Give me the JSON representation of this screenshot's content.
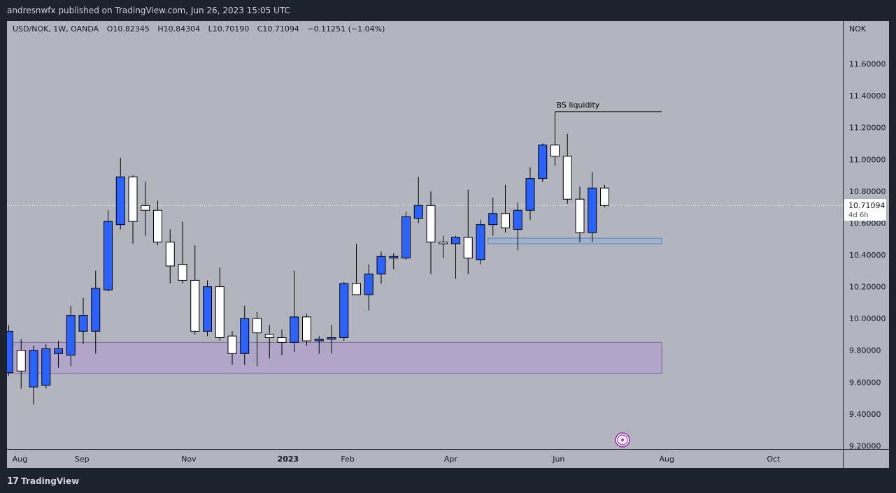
{
  "header": {
    "publisher_line": "andresnwfx published on TradingView.com, Jun 26, 2023 15:05 UTC"
  },
  "footer": {
    "brand": "TradingView",
    "logo_glyph": "17"
  },
  "colors": {
    "background": "#b2b5be",
    "frame": "#1e222d",
    "bull": "#2962ff",
    "bear": "#ffffff",
    "wick": "#000000",
    "zone_purple": "#b1a5c8",
    "zone_blue": "#9fb3cf",
    "price_tag": "#ffffff"
  },
  "chart_data": {
    "type": "candlestick",
    "symbol_line": "USD/NOK, 1W, OANDA",
    "ohlc_legend": {
      "O": "O10.82345",
      "H": "H10.84304",
      "L": "L10.70190",
      "C": "C10.71094",
      "change": "−0.11251 (−1.04%)"
    },
    "currency": "NOK",
    "last_price": "10.71094",
    "countdown": "4d 6h",
    "ylim": [
      9.18,
      11.87
    ],
    "y_ticks": [
      "9.20000",
      "9.40000",
      "9.60000",
      "9.80000",
      "10.00000",
      "10.20000",
      "10.40000",
      "10.60000",
      "10.80000",
      "11.00000",
      "11.20000",
      "11.40000",
      "11.60000"
    ],
    "x_ticks": [
      {
        "label": "Aug",
        "bar": 0.9
      },
      {
        "label": "Sep",
        "bar": 5.9
      },
      {
        "label": "Nov",
        "bar": 14.5
      },
      {
        "label": "2023",
        "bar": 22.5
      },
      {
        "label": "Feb",
        "bar": 27.3
      },
      {
        "label": "Apr",
        "bar": 35.6
      },
      {
        "label": "Jun",
        "bar": 44.3
      },
      {
        "label": "Aug",
        "bar": 53.0
      },
      {
        "label": "Oct",
        "bar": 61.6
      }
    ],
    "candles": [
      {
        "o": 9.66,
        "h": 9.96,
        "l": 9.64,
        "c": 9.92
      },
      {
        "o": 9.8,
        "h": 9.87,
        "l": 9.56,
        "c": 9.67
      },
      {
        "o": 9.57,
        "h": 9.83,
        "l": 9.46,
        "c": 9.8
      },
      {
        "o": 9.58,
        "h": 9.84,
        "l": 9.56,
        "c": 9.81
      },
      {
        "o": 9.78,
        "h": 9.86,
        "l": 9.69,
        "c": 9.81
      },
      {
        "o": 9.77,
        "h": 10.08,
        "l": 9.7,
        "c": 10.02
      },
      {
        "o": 9.92,
        "h": 10.13,
        "l": 9.84,
        "c": 10.02
      },
      {
        "o": 9.92,
        "h": 10.3,
        "l": 9.78,
        "c": 10.19
      },
      {
        "o": 10.18,
        "h": 10.68,
        "l": 10.17,
        "c": 10.61
      },
      {
        "o": 10.59,
        "h": 11.01,
        "l": 10.56,
        "c": 10.89
      },
      {
        "o": 10.89,
        "h": 10.9,
        "l": 10.47,
        "c": 10.61
      },
      {
        "o": 10.71,
        "h": 10.86,
        "l": 10.52,
        "c": 10.68
      },
      {
        "o": 10.68,
        "h": 10.74,
        "l": 10.46,
        "c": 10.48
      },
      {
        "o": 10.48,
        "h": 10.56,
        "l": 10.22,
        "c": 10.33
      },
      {
        "o": 10.34,
        "h": 10.61,
        "l": 10.22,
        "c": 10.24
      },
      {
        "o": 10.24,
        "h": 10.46,
        "l": 9.9,
        "c": 9.92
      },
      {
        "o": 9.92,
        "h": 10.24,
        "l": 9.89,
        "c": 10.2
      },
      {
        "o": 10.2,
        "h": 10.32,
        "l": 9.86,
        "c": 9.88
      },
      {
        "o": 9.89,
        "h": 9.92,
        "l": 9.71,
        "c": 9.78
      },
      {
        "o": 9.78,
        "h": 10.08,
        "l": 9.71,
        "c": 10.0
      },
      {
        "o": 10.0,
        "h": 10.04,
        "l": 9.7,
        "c": 9.91
      },
      {
        "o": 9.9,
        "h": 9.96,
        "l": 9.75,
        "c": 9.88
      },
      {
        "o": 9.88,
        "h": 9.93,
        "l": 9.77,
        "c": 9.85
      },
      {
        "o": 9.85,
        "h": 10.3,
        "l": 9.79,
        "c": 10.01
      },
      {
        "o": 10.01,
        "h": 10.03,
        "l": 9.83,
        "c": 9.86
      },
      {
        "o": 9.86,
        "h": 9.89,
        "l": 9.78,
        "c": 9.87
      },
      {
        "o": 9.87,
        "h": 9.96,
        "l": 9.78,
        "c": 9.88
      },
      {
        "o": 9.88,
        "h": 10.23,
        "l": 9.86,
        "c": 10.22
      },
      {
        "o": 10.22,
        "h": 10.47,
        "l": 10.15,
        "c": 10.15
      },
      {
        "o": 10.15,
        "h": 10.34,
        "l": 10.05,
        "c": 10.28
      },
      {
        "o": 10.28,
        "h": 10.42,
        "l": 10.22,
        "c": 10.39
      },
      {
        "o": 10.38,
        "h": 10.41,
        "l": 10.31,
        "c": 10.39
      },
      {
        "o": 10.38,
        "h": 10.67,
        "l": 10.37,
        "c": 10.64
      },
      {
        "o": 10.63,
        "h": 10.89,
        "l": 10.6,
        "c": 10.71
      },
      {
        "o": 10.71,
        "h": 10.8,
        "l": 10.28,
        "c": 10.48
      },
      {
        "o": 10.48,
        "h": 10.52,
        "l": 10.38,
        "c": 10.47
      },
      {
        "o": 10.47,
        "h": 10.52,
        "l": 10.25,
        "c": 10.51
      },
      {
        "o": 10.51,
        "h": 10.81,
        "l": 10.28,
        "c": 10.38
      },
      {
        "o": 10.37,
        "h": 10.62,
        "l": 10.34,
        "c": 10.59
      },
      {
        "o": 10.59,
        "h": 10.76,
        "l": 10.52,
        "c": 10.66
      },
      {
        "o": 10.66,
        "h": 10.84,
        "l": 10.54,
        "c": 10.57
      },
      {
        "o": 10.56,
        "h": 10.73,
        "l": 10.43,
        "c": 10.68
      },
      {
        "o": 10.68,
        "h": 10.95,
        "l": 10.62,
        "c": 10.88
      },
      {
        "o": 10.88,
        "h": 11.1,
        "l": 10.86,
        "c": 11.09
      },
      {
        "o": 11.09,
        "h": 11.3,
        "l": 10.96,
        "c": 11.02
      },
      {
        "o": 11.02,
        "h": 11.16,
        "l": 10.72,
        "c": 10.75
      },
      {
        "o": 10.75,
        "h": 10.83,
        "l": 10.48,
        "c": 10.54
      },
      {
        "o": 10.54,
        "h": 10.92,
        "l": 10.48,
        "c": 10.82
      },
      {
        "o": 10.82,
        "h": 10.84,
        "l": 10.7,
        "c": 10.71
      }
    ],
    "zones": [
      {
        "name": "demand-zone-purple",
        "bar_start": -0.5,
        "bar_end": 52.6,
        "y_low": 9.655,
        "y_high": 9.85
      },
      {
        "name": "demand-zone-blue",
        "bar_start": 38.6,
        "bar_end": 52.6,
        "y_low": 10.47,
        "y_high": 10.505
      }
    ],
    "annotations": [
      {
        "name": "bs-liquidity",
        "text": "BS liquidity",
        "bar_start": 44.0,
        "bar_end": 52.6,
        "y": 11.3
      }
    ]
  }
}
